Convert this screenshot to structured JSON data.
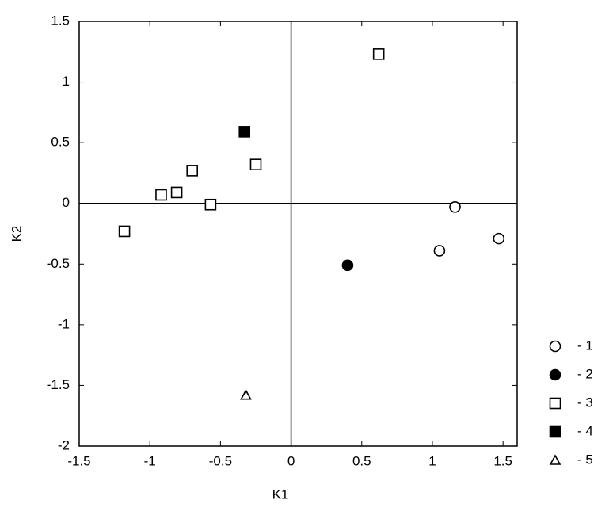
{
  "chart_data": {
    "type": "scatter",
    "x_label": "K1",
    "y_label": "K2",
    "xlim": [
      -1.5,
      1.6
    ],
    "ylim": [
      -2,
      1.5
    ],
    "xticks": [
      -1.5,
      -1,
      -0.5,
      0,
      0.5,
      1,
      1.5
    ],
    "yticks": [
      -2,
      -1.5,
      -1,
      -0.5,
      0,
      0.5,
      1,
      1.5
    ],
    "zero_lines": true,
    "legend": "right",
    "series": [
      {
        "name": "- 1",
        "marker": "circle",
        "filled": false,
        "color": "#000000",
        "x": [
          1.16,
          1.05,
          1.47
        ],
        "y": [
          -0.03,
          -0.39,
          -0.29
        ]
      },
      {
        "name": "- 2",
        "marker": "circle",
        "filled": true,
        "color": "#000000",
        "x": [
          0.4
        ],
        "y": [
          -0.51
        ]
      },
      {
        "name": "- 3",
        "marker": "square",
        "filled": false,
        "color": "#000000",
        "x": [
          0.62,
          -1.18,
          -0.92,
          -0.81,
          -0.7,
          -0.57,
          -0.25
        ],
        "y": [
          1.23,
          -0.23,
          0.07,
          0.09,
          0.27,
          -0.01,
          0.32
        ]
      },
      {
        "name": "- 4",
        "marker": "square",
        "filled": true,
        "color": "#000000",
        "x": [
          -0.33
        ],
        "y": [
          0.59
        ]
      },
      {
        "name": "- 5",
        "marker": "triangle",
        "filled": false,
        "color": "#000000",
        "x": [
          -0.32
        ],
        "y": [
          -1.58
        ]
      }
    ]
  }
}
